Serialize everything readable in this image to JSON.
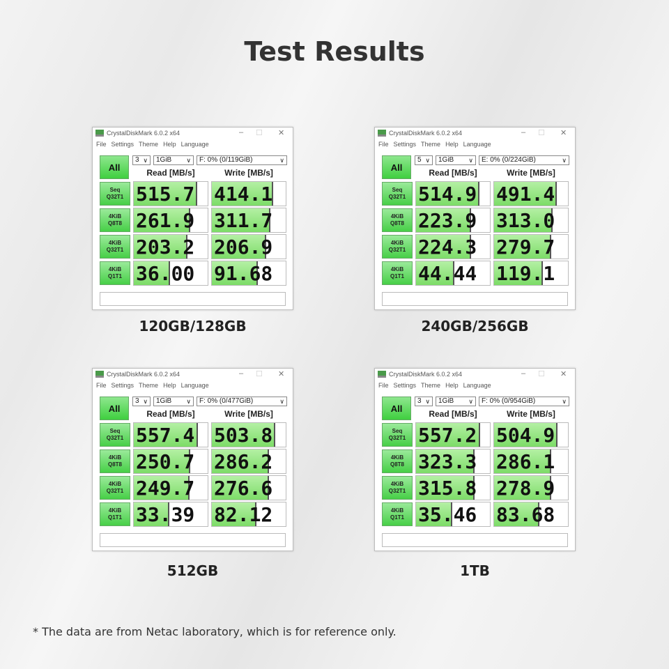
{
  "title": "Test Results",
  "app": {
    "title": "CrystalDiskMark 6.0.2 x64",
    "menu": [
      "File",
      "Settings",
      "Theme",
      "Help",
      "Language"
    ],
    "all_label": "All",
    "read_header": "Read [MB/s]",
    "write_header": "Write [MB/s]",
    "row_labels": [
      [
        "Seq",
        "Q32T1"
      ],
      [
        "4KiB",
        "Q8T8"
      ],
      [
        "4KiB",
        "Q32T1"
      ],
      [
        "4KiB",
        "Q1T1"
      ]
    ]
  },
  "panels": [
    {
      "caption": "120GB/128GB",
      "count": "3",
      "size": "1GiB",
      "drive": "F: 0% (0/119GiB)",
      "read": [
        "515.7",
        "261.9",
        "203.2",
        "36.00"
      ],
      "write": [
        "414.1",
        "311.7",
        "206.9",
        "91.68"
      ]
    },
    {
      "caption": "240GB/256GB",
      "count": "5",
      "size": "1GiB",
      "drive": "E: 0% (0/224GiB)",
      "read": [
        "514.9",
        "223.9",
        "224.3",
        "44.44"
      ],
      "write": [
        "491.4",
        "313.0",
        "279.7",
        "119.1"
      ]
    },
    {
      "caption": "512GB",
      "count": "3",
      "size": "1GiB",
      "drive": "F: 0% (0/477GiB)",
      "read": [
        "557.4",
        "250.7",
        "249.7",
        "33.39"
      ],
      "write": [
        "503.8",
        "286.2",
        "276.6",
        "82.12"
      ]
    },
    {
      "caption": "1TB",
      "count": "3",
      "size": "1GiB",
      "drive": "F: 0% (0/954GiB)",
      "read": [
        "557.2",
        "323.3",
        "315.8",
        "35.46"
      ],
      "write": [
        "504.9",
        "286.1",
        "278.9",
        "83.68"
      ]
    }
  ],
  "footnote": "* The data are from Netac laboratory, which is for reference only."
}
